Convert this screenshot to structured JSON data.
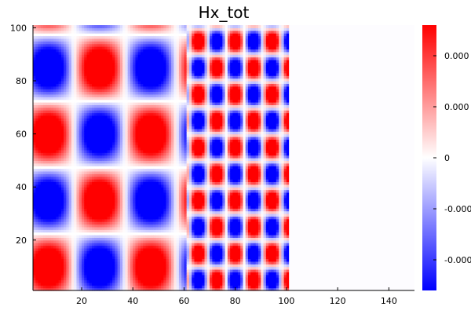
{
  "chart_data": {
    "type": "heatmap",
    "title": "Hx_tot",
    "xlabel": "",
    "ylabel": "",
    "xlim": [
      1,
      150
    ],
    "ylim": [
      1,
      101
    ],
    "x_ticks": [
      20,
      40,
      60,
      80,
      100,
      120,
      140
    ],
    "y_ticks": [
      20,
      40,
      60,
      80,
      100
    ],
    "grid": false,
    "colormap": [
      "#0000ff",
      "#ffffff",
      "#ff0000"
    ],
    "colorbar": {
      "ticks": [
        -0.0002,
        -0.0001,
        0,
        0.0001,
        0.0002
      ],
      "tick_labels": [
        "-0.000",
        "-0.000",
        "0",
        "0.000",
        "0.000"
      ],
      "range": [
        -0.00026,
        0.00026
      ]
    },
    "regions": [
      {
        "name": "left",
        "x_range": [
          1,
          61
        ],
        "x_period": 40,
        "x_phase_center": 27,
        "y_period": 50,
        "y_phase_center": 35,
        "amplitude": 1.0
      },
      {
        "name": "middle",
        "x_range": [
          61,
          101
        ],
        "x_period": 14.4,
        "x_phase_center": 80,
        "y_period": 20,
        "y_phase_center": 15,
        "amplitude": 1.0
      },
      {
        "name": "right",
        "x_range": [
          101,
          150
        ],
        "value": 0.0
      }
    ]
  }
}
